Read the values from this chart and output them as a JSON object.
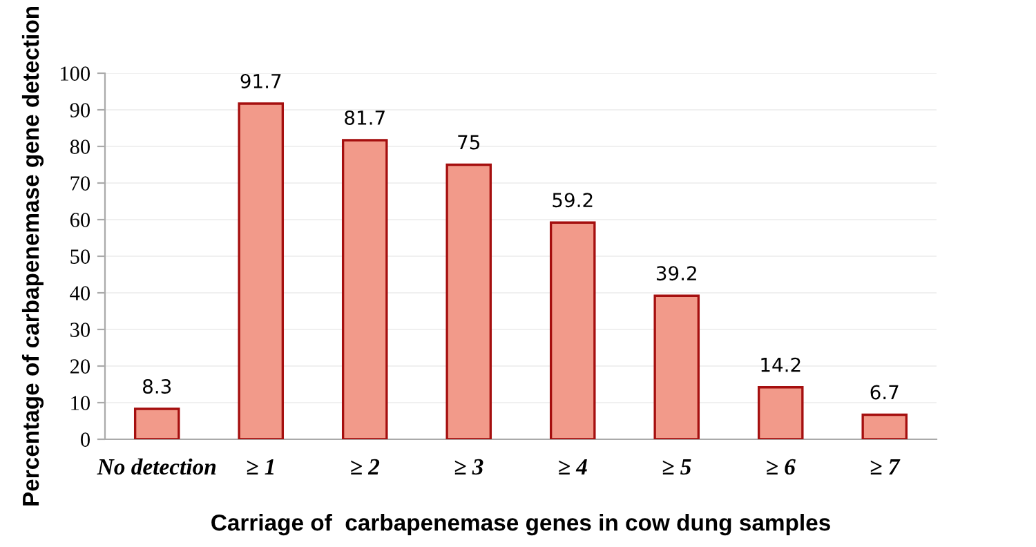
{
  "chart_data": {
    "type": "bar",
    "xlabel": "Carriage of  carbapenemase genes in cow dung samples",
    "ylabel": "Percentage of carbapenemase gene detection",
    "categories": [
      "No detection",
      "≥ 1",
      "≥ 2",
      "≥ 3",
      "≥ 4",
      "≥ 5",
      "≥ 6",
      "≥ 7"
    ],
    "values": [
      8.3,
      91.7,
      81.7,
      75,
      59.2,
      39.2,
      14.2,
      6.7
    ],
    "color": "#f29a8a",
    "ylim": [
      0,
      100
    ],
    "yticks": [
      0,
      10,
      20,
      30,
      40,
      50,
      60,
      70,
      80,
      90,
      100
    ],
    "grid": "y",
    "data_labels": true
  }
}
